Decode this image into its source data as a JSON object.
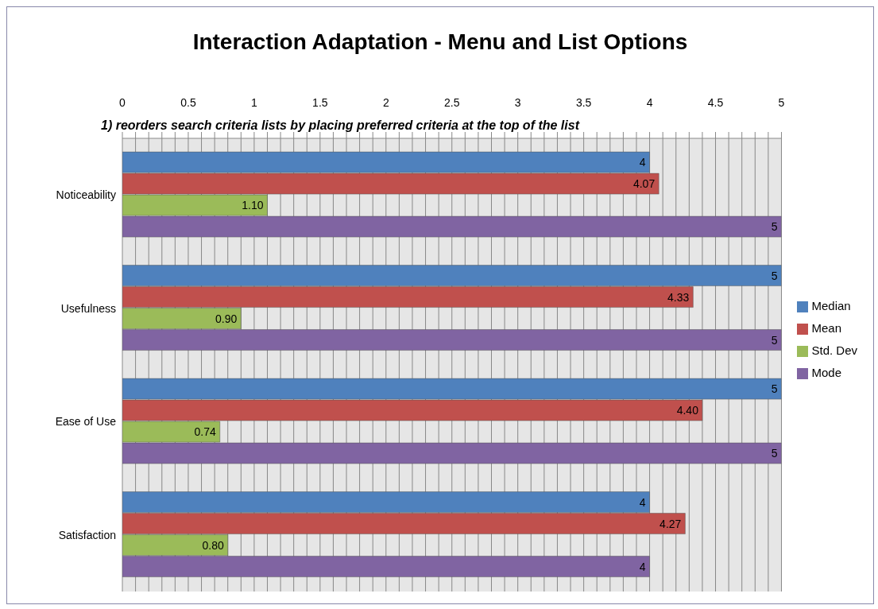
{
  "chart_data": {
    "type": "bar",
    "orientation": "horizontal",
    "title": "Interaction Adaptation - Menu and List Options",
    "annotations": [
      "1) reorders search criteria lists by placing preferred criteria at the top of the list"
    ],
    "categories": [
      "Noticeability",
      "Usefulness",
      "Ease of Use",
      "Satisfaction"
    ],
    "series": [
      {
        "name": "Median",
        "color": "#4f81bd",
        "values": [
          4,
          5,
          5,
          4
        ],
        "value_labels": [
          "4",
          "5",
          "5",
          "4"
        ]
      },
      {
        "name": "Mean",
        "color": "#c0504d",
        "values": [
          4.07,
          4.33,
          4.4,
          4.27
        ],
        "value_labels": [
          "4.07",
          "4.33",
          "4.40",
          "4.27"
        ]
      },
      {
        "name": "Std. Dev",
        "color": "#9bbb59",
        "values": [
          1.1,
          0.9,
          0.74,
          0.8
        ],
        "value_labels": [
          "1.10",
          "0.90",
          "0.74",
          "0.80"
        ]
      },
      {
        "name": "Mode",
        "color": "#8064a2",
        "values": [
          5,
          5,
          5,
          4
        ],
        "value_labels": [
          "5",
          "5",
          "5",
          "4"
        ]
      }
    ],
    "xlim": [
      0,
      5
    ],
    "xticks": [
      0,
      {
        "value": 0.1,
        "label": null
      },
      {
        "value": 0.2,
        "label": null
      },
      {
        "value": 0.3,
        "label": null
      },
      {
        "value": 0.4,
        "label": null
      },
      0.5,
      {
        "value": 0.6,
        "label": null
      },
      {
        "value": 0.7,
        "label": null
      },
      {
        "value": 0.8,
        "label": null
      },
      {
        "value": 0.9,
        "label": null
      },
      1,
      {
        "value": 1.1,
        "label": null
      },
      {
        "value": 1.2,
        "label": null
      },
      {
        "value": 1.3,
        "label": null
      },
      {
        "value": 1.4,
        "label": null
      },
      1.5,
      {
        "value": 1.6,
        "label": null
      },
      {
        "value": 1.7,
        "label": null
      },
      {
        "value": 1.8,
        "label": null
      },
      {
        "value": 1.9,
        "label": null
      },
      2,
      {
        "value": 2.1,
        "label": null
      },
      {
        "value": 2.2,
        "label": null
      },
      {
        "value": 2.3,
        "label": null
      },
      {
        "value": 2.4,
        "label": null
      },
      2.5,
      {
        "value": 2.6,
        "label": null
      },
      {
        "value": 2.7,
        "label": null
      },
      {
        "value": 2.8,
        "label": null
      },
      {
        "value": 2.9,
        "label": null
      },
      3,
      {
        "value": 3.1,
        "label": null
      },
      {
        "value": 3.2,
        "label": null
      },
      {
        "value": 3.3,
        "label": null
      },
      {
        "value": 3.4,
        "label": null
      },
      3.5,
      {
        "value": 3.6,
        "label": null
      },
      {
        "value": 3.7,
        "label": null
      },
      {
        "value": 3.8,
        "label": null
      },
      {
        "value": 3.9,
        "label": null
      },
      4,
      {
        "value": 4.1,
        "label": null
      },
      {
        "value": 4.2,
        "label": null
      },
      {
        "value": 4.3,
        "label": null
      },
      {
        "value": 4.4,
        "label": null
      },
      4.5,
      {
        "value": 4.6,
        "label": null
      },
      {
        "value": 4.7,
        "label": null
      },
      {
        "value": 4.8,
        "label": null
      },
      {
        "value": 4.9,
        "label": null
      },
      5
    ],
    "grid": "x",
    "legend": "right"
  }
}
